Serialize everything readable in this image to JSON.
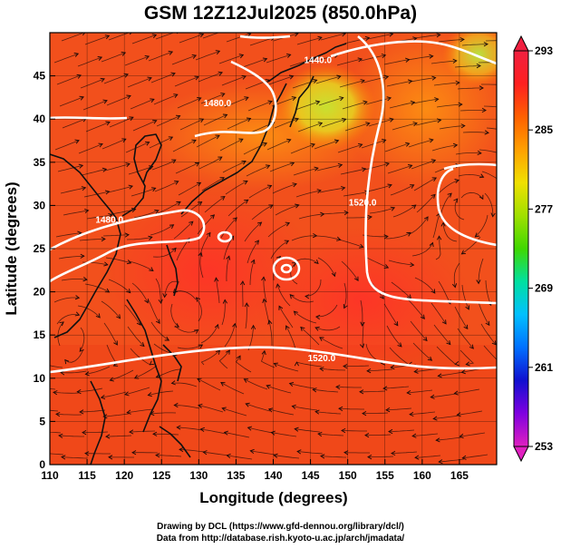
{
  "title": "GSM 12Z12Jul2025 (850.0hPa)",
  "credits": {
    "line1": "Drawing by DCL (https://www.gfd-dennou.org/library/dcl/)",
    "line2": "Data from http://database.rish.kyoto-u.ac.jp/arch/jmadata/"
  },
  "chart_data": {
    "type": "heatmap",
    "title": "GSM 12Z12Jul2025 (850.0hPa)",
    "xlabel": "Longitude (degrees)",
    "ylabel": "Latitude  (degrees)",
    "xlim": [
      110,
      170
    ],
    "ylim": [
      0,
      50
    ],
    "x_ticks": [
      110,
      115,
      120,
      125,
      130,
      135,
      140,
      145,
      150,
      155,
      160,
      165
    ],
    "y_ticks": [
      0,
      5,
      10,
      15,
      20,
      25,
      30,
      35,
      40,
      45
    ],
    "grid": true,
    "field": "temperature",
    "colorbar": {
      "ticks": [
        253,
        261,
        269,
        277,
        285,
        293
      ],
      "range": [
        253,
        293
      ],
      "colormap": [
        "#e020c0",
        "#8000e0",
        "#1010d0",
        "#0070ff",
        "#00c0ff",
        "#00e0a0",
        "#40d800",
        "#a0e000",
        "#f0e000",
        "#ffa000",
        "#ff6000",
        "#ff2020",
        "#f02040"
      ]
    },
    "contours": [
      {
        "label": "1480.0",
        "lon": 132.5,
        "lat": 41.5
      },
      {
        "label": "1440.0",
        "lon": 146,
        "lat": 46.5
      },
      {
        "label": "1480.0",
        "lon": 118,
        "lat": 28
      },
      {
        "label": "1520.0",
        "lon": 152,
        "lat": 30
      },
      {
        "label": "1520.0",
        "lon": 146.5,
        "lat": 12
      }
    ],
    "annotations": []
  }
}
